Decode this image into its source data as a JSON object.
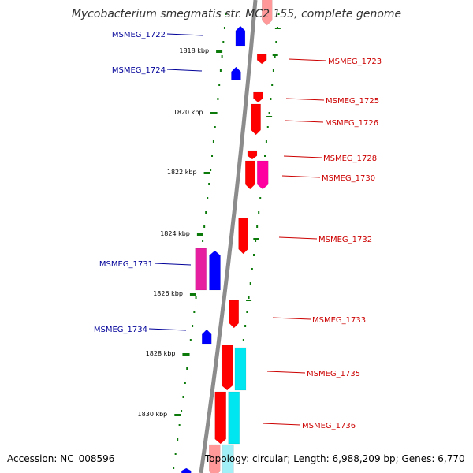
{
  "title": "Mycobacterium smegmatis str. MC2 155, complete genome",
  "accession": "Accession: NC_008596",
  "summary": "Topology: circular; Length: 6,988,209 bp; Genes: 6,770",
  "colors": {
    "background": "#ffffff",
    "backbone": "#8c8c8c",
    "forward_gene": "#ff0000",
    "reverse_gene": "#0000ff",
    "other_forward": "#ff00a0",
    "other_reverse": "#e61ea0",
    "rna_feature": "#00e6f0",
    "tick": "#0b7a0b",
    "forward_label": "#cc0000",
    "reverse_label": "#000099"
  },
  "ticks": [
    {
      "label": "1818 kbp"
    },
    {
      "label": "1820 kbp"
    },
    {
      "label": "1822 kbp"
    },
    {
      "label": "1824 kbp"
    },
    {
      "label": "1826 kbp"
    },
    {
      "label": "1828 kbp"
    },
    {
      "label": "1830 kbp"
    }
  ],
  "forward_labels": [
    "MSMEG_1723",
    "MSMEG_1725",
    "MSMEG_1726",
    "MSMEG_1728",
    "MSMEG_1730",
    "MSMEG_1732",
    "MSMEG_1733",
    "MSMEG_1735",
    "MSMEG_1736"
  ],
  "reverse_labels": [
    "MSMEG_1722",
    "MSMEG_1724",
    "MSMEG_1731",
    "MSMEG_1734"
  ]
}
